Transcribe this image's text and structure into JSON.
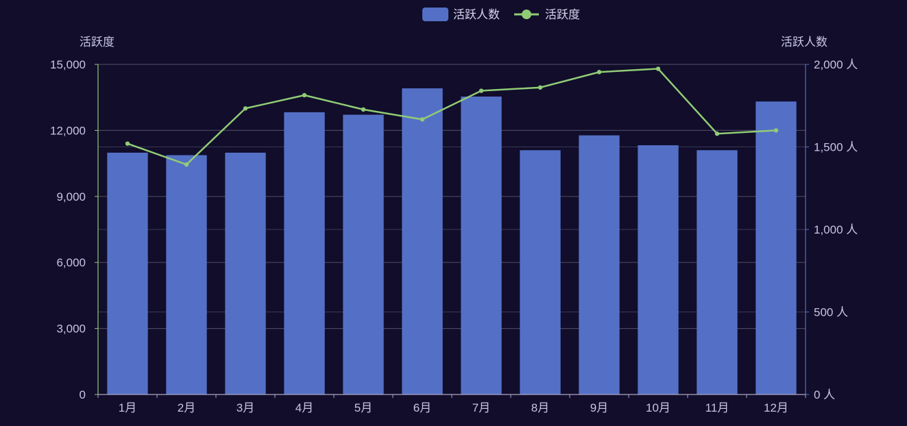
{
  "chart_data": {
    "type": "bar",
    "categories": [
      "1月",
      "2月",
      "3月",
      "4月",
      "5月",
      "6月",
      "7月",
      "8月",
      "9月",
      "10月",
      "11月",
      "12月"
    ],
    "series": [
      {
        "name": "活跃人数",
        "type": "bar",
        "axis": "right",
        "color": "#5470c6",
        "values": [
          1465,
          1450,
          1465,
          1710,
          1695,
          1855,
          1805,
          1480,
          1570,
          1510,
          1480,
          1775
        ]
      },
      {
        "name": "活跃度",
        "type": "line",
        "axis": "left",
        "color": "#91cc75",
        "values": [
          11400,
          10450,
          13000,
          13600,
          12950,
          12500,
          13800,
          13950,
          14650,
          14800,
          11850,
          12000
        ]
      }
    ],
    "left_axis": {
      "label": "活跃度",
      "ylim": [
        0,
        15000
      ],
      "ticks": [
        0,
        3000,
        6000,
        9000,
        12000,
        15000
      ],
      "tick_labels": [
        "0",
        "3,000",
        "6,000",
        "9,000",
        "12,000",
        "15,000"
      ],
      "color": "#91cc75"
    },
    "right_axis": {
      "label": "活跃人数",
      "ylim": [
        0,
        2000
      ],
      "ticks": [
        0,
        500,
        1000,
        1500,
        2000
      ],
      "tick_labels": [
        "0 人",
        "500 人",
        "1,000 人",
        "1,500 人",
        "2,000 人"
      ],
      "color": "#5470c6"
    },
    "legend": {
      "position": "top-center",
      "items": [
        "活跃人数",
        "活跃度"
      ]
    },
    "grid": true,
    "background": "#110d2b"
  }
}
